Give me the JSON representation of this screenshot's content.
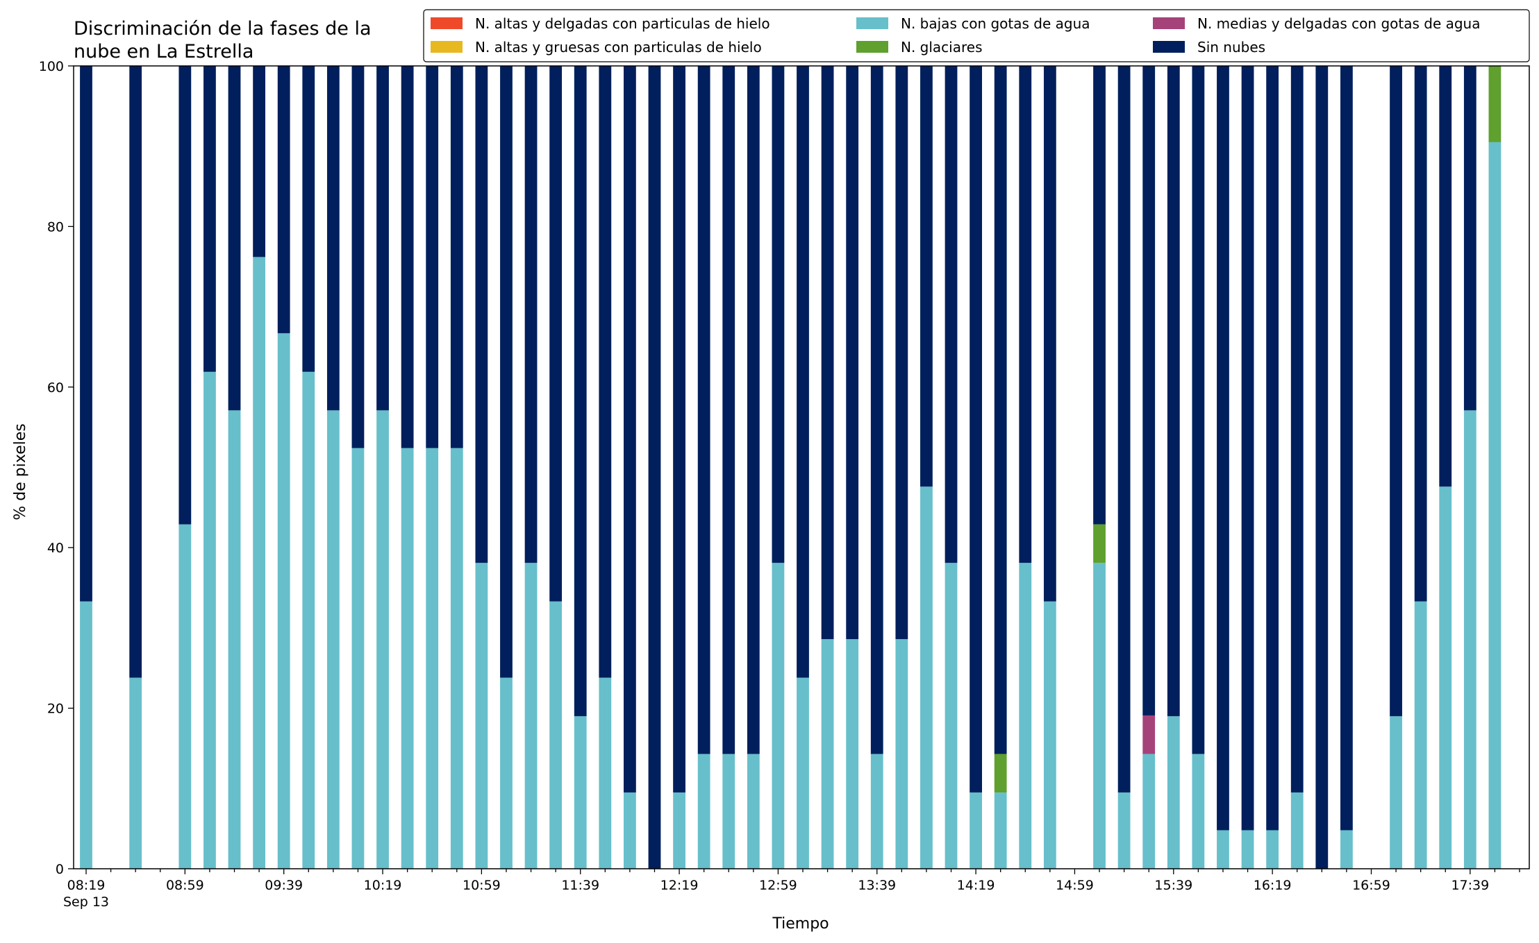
{
  "chart_data": {
    "type": "bar",
    "stacked": true,
    "title_lines": [
      "Discriminación de la fases de la",
      "nube en La Estrella"
    ],
    "xlabel": "Tiempo",
    "ylabel": "% de pixeles",
    "ylim": [
      0,
      100
    ],
    "yticks": [
      0,
      20,
      40,
      60,
      80,
      100
    ],
    "ytick_labels": [
      "0",
      "20",
      "40",
      "60",
      "80",
      "100"
    ],
    "grid": false,
    "legend_position": "top-right",
    "x_minutes_start": "08:19",
    "x_step_minutes": 10,
    "xtick_major_labels": [
      {
        "index": 0,
        "label": "08:19",
        "sublabel": "Sep 13"
      },
      {
        "index": 4,
        "label": "08:59"
      },
      {
        "index": 8,
        "label": "09:39"
      },
      {
        "index": 12,
        "label": "10:19"
      },
      {
        "index": 16,
        "label": "10:59"
      },
      {
        "index": 20,
        "label": "11:39"
      },
      {
        "index": 24,
        "label": "12:19"
      },
      {
        "index": 28,
        "label": "12:59"
      },
      {
        "index": 32,
        "label": "13:39"
      },
      {
        "index": 36,
        "label": "14:19"
      },
      {
        "index": 40,
        "label": "14:59"
      },
      {
        "index": 44,
        "label": "15:39"
      },
      {
        "index": 48,
        "label": "16:19"
      },
      {
        "index": 52,
        "label": "16:59"
      },
      {
        "index": 56,
        "label": "17:39"
      }
    ],
    "num_slots": 59,
    "series": [
      {
        "key": "altas_delgadas",
        "name": "N. altas y delgadas con particulas de hielo",
        "color": "#ee4a2a"
      },
      {
        "key": "altas_gruesas",
        "name": "N. altas y gruesas con particulas de hielo",
        "color": "#e8b820"
      },
      {
        "key": "bajas",
        "name": "N. bajas con gotas de agua",
        "color": "#67bfcb"
      },
      {
        "key": "glaciares",
        "name": "N. glaciares",
        "color": "#5fa02e"
      },
      {
        "key": "medias",
        "name": "N. medias y delgadas con gotas de agua",
        "color": "#a6427a"
      },
      {
        "key": "sin",
        "name": "Sin nubes",
        "color": "#001f5c"
      }
    ],
    "stack_order": [
      "bajas",
      "medias",
      "glaciares",
      "altas_delgadas",
      "altas_gruesas",
      "sin"
    ],
    "bars": [
      {
        "index": 0,
        "bajas": 33.3,
        "sin": 66.7
      },
      {
        "index": 2,
        "bajas": 23.8,
        "sin": 76.2
      },
      {
        "index": 4,
        "bajas": 42.9,
        "sin": 57.1
      },
      {
        "index": 5,
        "bajas": 61.9,
        "sin": 38.1
      },
      {
        "index": 6,
        "bajas": 57.1,
        "sin": 42.9
      },
      {
        "index": 7,
        "bajas": 76.2,
        "sin": 23.8
      },
      {
        "index": 8,
        "bajas": 66.7,
        "sin": 33.3
      },
      {
        "index": 9,
        "bajas": 61.9,
        "sin": 38.1
      },
      {
        "index": 10,
        "bajas": 57.1,
        "sin": 42.9
      },
      {
        "index": 11,
        "bajas": 52.4,
        "sin": 47.6
      },
      {
        "index": 12,
        "bajas": 57.1,
        "sin": 42.9
      },
      {
        "index": 13,
        "bajas": 52.4,
        "sin": 47.6
      },
      {
        "index": 14,
        "bajas": 52.4,
        "sin": 47.6
      },
      {
        "index": 15,
        "bajas": 52.4,
        "sin": 47.6
      },
      {
        "index": 16,
        "bajas": 38.1,
        "sin": 61.9
      },
      {
        "index": 17,
        "bajas": 23.8,
        "sin": 76.2
      },
      {
        "index": 18,
        "bajas": 38.1,
        "sin": 61.9
      },
      {
        "index": 19,
        "bajas": 33.3,
        "sin": 66.7
      },
      {
        "index": 20,
        "bajas": 19.0,
        "sin": 81.0
      },
      {
        "index": 21,
        "bajas": 23.8,
        "sin": 76.2
      },
      {
        "index": 22,
        "bajas": 9.5,
        "sin": 90.5
      },
      {
        "index": 23,
        "bajas": 0,
        "sin": 100
      },
      {
        "index": 24,
        "bajas": 9.5,
        "sin": 90.5
      },
      {
        "index": 25,
        "bajas": 14.3,
        "sin": 85.7
      },
      {
        "index": 26,
        "bajas": 14.3,
        "sin": 85.7
      },
      {
        "index": 27,
        "bajas": 14.3,
        "sin": 85.7
      },
      {
        "index": 28,
        "bajas": 38.1,
        "sin": 61.9
      },
      {
        "index": 29,
        "bajas": 23.8,
        "sin": 76.2
      },
      {
        "index": 30,
        "bajas": 28.6,
        "sin": 71.4
      },
      {
        "index": 31,
        "bajas": 28.6,
        "sin": 71.4
      },
      {
        "index": 32,
        "bajas": 14.3,
        "sin": 85.7
      },
      {
        "index": 33,
        "bajas": 28.6,
        "sin": 71.4
      },
      {
        "index": 34,
        "bajas": 47.6,
        "sin": 52.4
      },
      {
        "index": 35,
        "bajas": 38.1,
        "sin": 61.9
      },
      {
        "index": 36,
        "bajas": 9.5,
        "sin": 90.5
      },
      {
        "index": 37,
        "bajas": 9.5,
        "glaciares": 4.8,
        "sin": 85.7
      },
      {
        "index": 38,
        "bajas": 38.1,
        "sin": 61.9
      },
      {
        "index": 39,
        "bajas": 33.3,
        "sin": 66.7
      },
      {
        "index": 41,
        "bajas": 38.1,
        "glaciares": 4.8,
        "sin": 57.1
      },
      {
        "index": 42,
        "bajas": 9.5,
        "sin": 90.5
      },
      {
        "index": 43,
        "bajas": 14.3,
        "medias": 4.8,
        "sin": 80.9
      },
      {
        "index": 44,
        "bajas": 19.0,
        "sin": 81.0
      },
      {
        "index": 45,
        "bajas": 14.3,
        "sin": 85.7
      },
      {
        "index": 46,
        "bajas": 4.8,
        "sin": 95.2
      },
      {
        "index": 47,
        "bajas": 4.8,
        "sin": 95.2
      },
      {
        "index": 48,
        "bajas": 4.8,
        "sin": 95.2
      },
      {
        "index": 49,
        "bajas": 9.5,
        "sin": 90.5
      },
      {
        "index": 50,
        "bajas": 0,
        "sin": 100
      },
      {
        "index": 51,
        "bajas": 4.8,
        "sin": 95.2
      },
      {
        "index": 53,
        "bajas": 19.0,
        "sin": 81.0
      },
      {
        "index": 54,
        "bajas": 33.3,
        "sin": 66.7
      },
      {
        "index": 55,
        "bajas": 47.6,
        "sin": 52.4
      },
      {
        "index": 56,
        "bajas": 57.1,
        "sin": 42.9
      },
      {
        "index": 57,
        "bajas": 90.5,
        "glaciares": 9.5,
        "sin": 0
      }
    ]
  }
}
